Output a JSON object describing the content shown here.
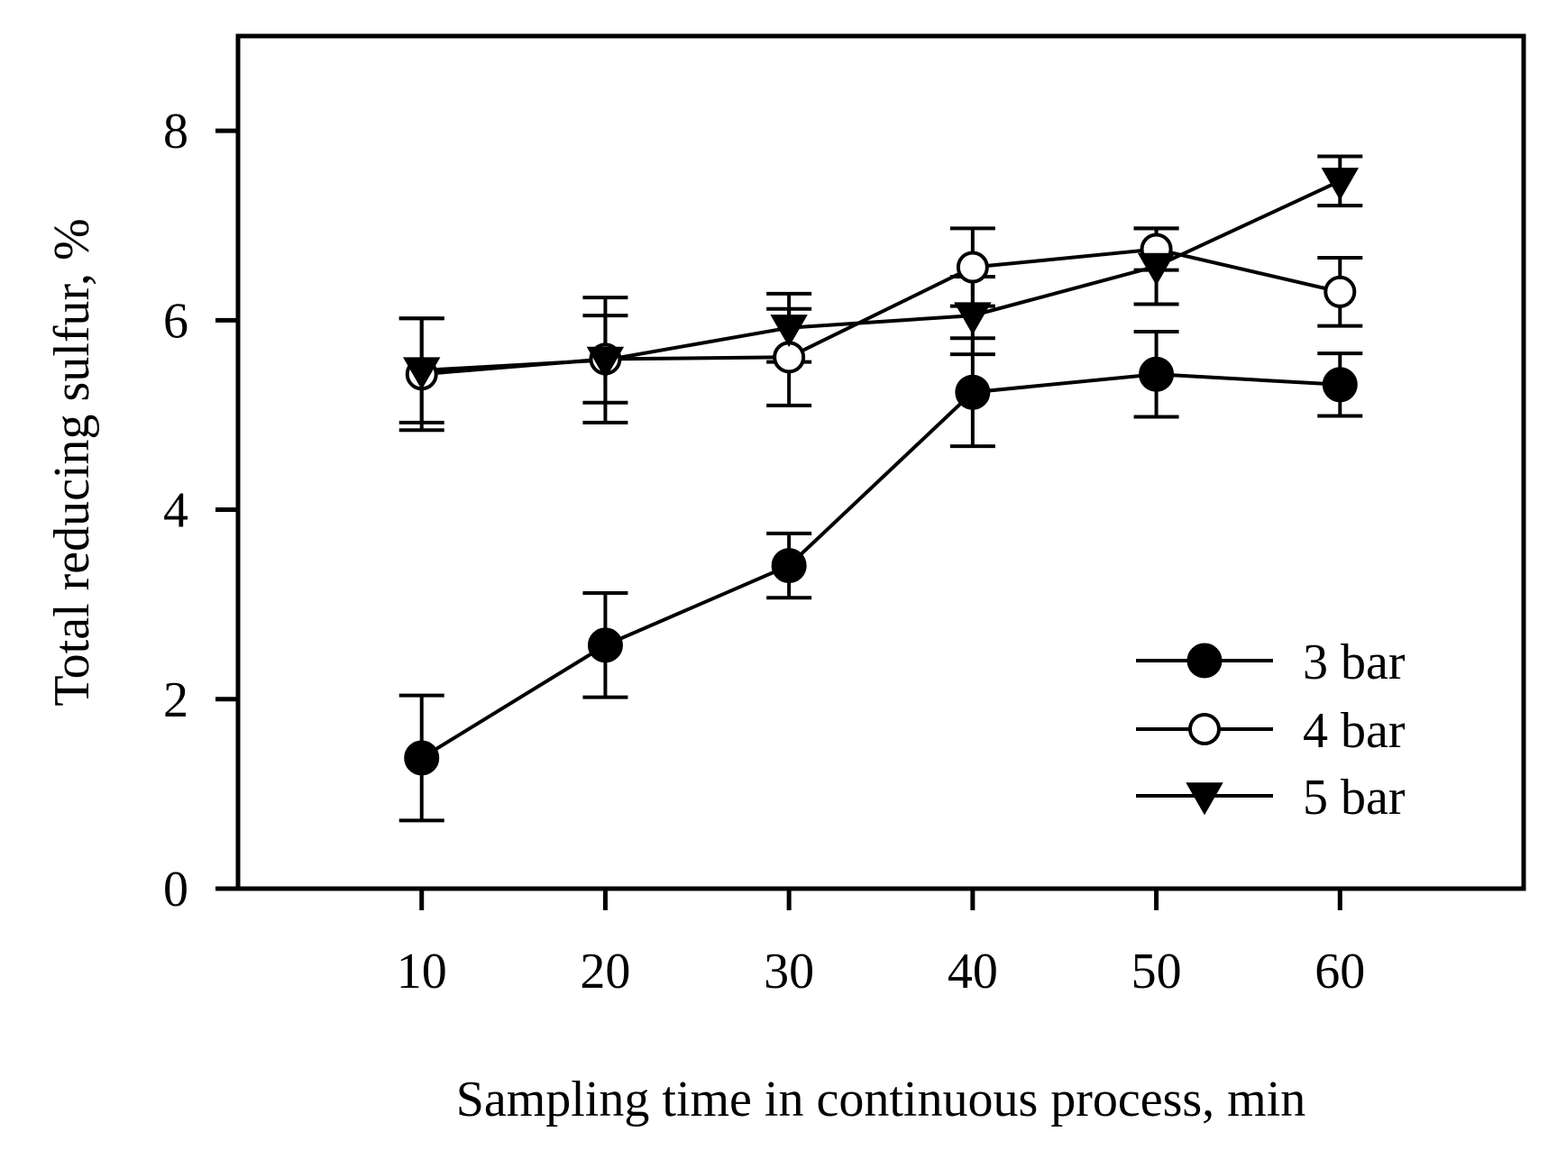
{
  "chart_data": {
    "type": "line",
    "title": "",
    "xlabel": "Sampling time in continuous process, min",
    "ylabel": "Total reducing sulfur, %",
    "xlim": [
      0,
      70
    ],
    "ylim": [
      0,
      9
    ],
    "x": [
      10,
      20,
      30,
      40,
      50,
      60
    ],
    "xticks": [
      10,
      20,
      30,
      40,
      50,
      60
    ],
    "xtick_labels": [
      "10",
      "20",
      "30",
      "40",
      "50",
      "60"
    ],
    "yticks": [
      0,
      2,
      4,
      6,
      8
    ],
    "ytick_labels": [
      "0",
      "2",
      "4",
      "6",
      "8"
    ],
    "grid": false,
    "legend_position": "bottom-right",
    "series": [
      {
        "name": "3 bar",
        "marker": "filled-circle",
        "values": [
          1.38,
          2.57,
          3.41,
          5.24,
          5.43,
          5.32
        ],
        "errors": [
          0.66,
          0.55,
          0.34,
          0.57,
          0.45,
          0.33
        ]
      },
      {
        "name": "4 bar",
        "marker": "open-circle",
        "values": [
          5.43,
          5.59,
          5.61,
          6.56,
          6.75,
          6.3
        ],
        "errors": [
          0.59,
          0.46,
          0.51,
          0.41,
          0.22,
          0.36
        ]
      },
      {
        "name": "5 bar",
        "marker": "filled-triangle-down",
        "values": [
          5.47,
          5.58,
          5.92,
          6.05,
          6.57,
          7.47
        ],
        "errors": [
          0.55,
          0.66,
          0.36,
          0.41,
          0.4,
          0.26
        ]
      }
    ],
    "colors": {
      "line": "#000000",
      "marker_fill": "#000000",
      "open_fill": "#ffffff",
      "background": "#ffffff"
    }
  }
}
